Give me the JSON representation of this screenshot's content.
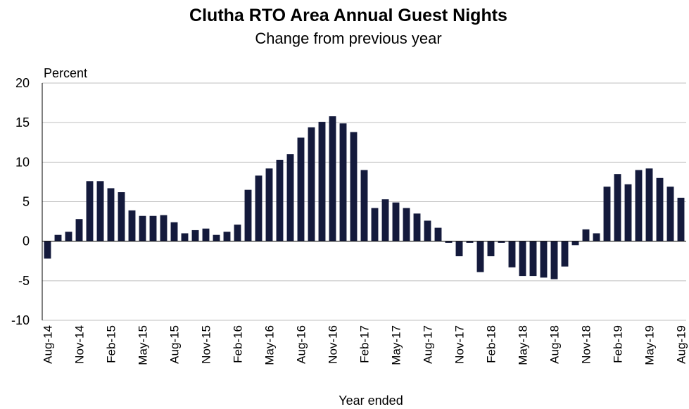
{
  "chart_data": {
    "type": "bar",
    "title": "Clutha RTO Area Annual  Guest Nights",
    "subtitle": "Change  from  previous  year",
    "y_label": "Percent",
    "x_label": "Year ended",
    "categories": [
      "Aug-14",
      null,
      null,
      "Nov-14",
      null,
      null,
      "Feb-15",
      null,
      null,
      "May-15",
      null,
      null,
      "Aug-15",
      null,
      null,
      "Nov-15",
      null,
      null,
      "Feb-16",
      null,
      null,
      "May-16",
      null,
      null,
      "Aug-16",
      null,
      null,
      "Nov-16",
      null,
      null,
      "Feb-17",
      null,
      null,
      "May-17",
      null,
      null,
      "Aug-17",
      null,
      null,
      "Nov-17",
      null,
      null,
      "Feb-18",
      null,
      null,
      "May-18",
      null,
      null,
      "Aug-18",
      null,
      null,
      "Nov-18",
      null,
      null,
      "Feb-19",
      null,
      null,
      "May-19",
      null,
      null,
      "Aug-19"
    ],
    "values": [
      -2.2,
      0.8,
      1.2,
      2.8,
      7.6,
      7.6,
      6.7,
      6.2,
      3.9,
      3.2,
      3.2,
      3.3,
      2.4,
      1.0,
      1.4,
      1.6,
      0.8,
      1.2,
      2.1,
      6.5,
      8.3,
      9.2,
      10.3,
      11.0,
      13.1,
      14.4,
      15.1,
      15.8,
      14.9,
      13.8,
      9.0,
      4.2,
      5.3,
      4.9,
      4.2,
      3.5,
      2.6,
      1.7,
      -0.2,
      -1.9,
      -0.2,
      -3.9,
      -1.9,
      -0.2,
      -3.3,
      -4.4,
      -4.4,
      -4.6,
      -4.8,
      -3.2,
      -0.5,
      1.5,
      1.0,
      6.9,
      8.5,
      7.2,
      9.0,
      9.2,
      8.0,
      6.9,
      5.5
    ],
    "color": "#141a3c",
    "ylim": [
      -10,
      20
    ],
    "yticks": [
      -10,
      -5,
      0,
      5,
      10,
      15,
      20
    ],
    "grid": true
  }
}
